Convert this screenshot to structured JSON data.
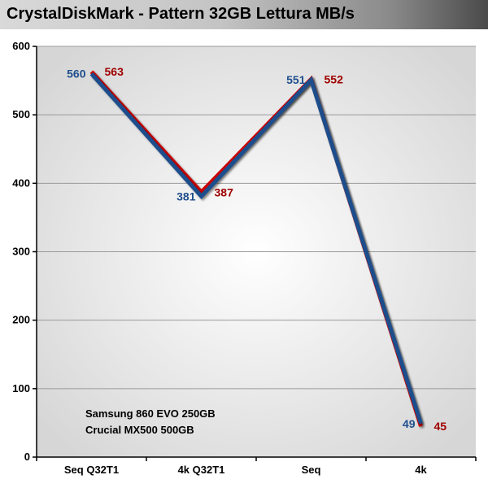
{
  "chart_data": {
    "type": "line",
    "title": "CrystalDiskMark - Pattern 32GB Lettura MB/s",
    "categories": [
      "Seq Q32T1",
      "4k Q32T1",
      "Seq",
      "4k"
    ],
    "series": [
      {
        "name": "Samsung 860 EVO 250GB",
        "values": [
          563,
          387,
          552,
          45
        ],
        "color": "#cc0000",
        "label_color": "#a00000"
      },
      {
        "name": "Crucial MX500 500GB",
        "values": [
          560,
          381,
          551,
          49
        ],
        "color": "#1f4e8c",
        "label_color": "#1f4e8c"
      }
    ],
    "ylim": [
      0,
      600
    ],
    "yticks": [
      0,
      100,
      200,
      300,
      400,
      500,
      600
    ],
    "grid": true,
    "legend_position": "bottom-left",
    "xlabel": "",
    "ylabel": ""
  }
}
